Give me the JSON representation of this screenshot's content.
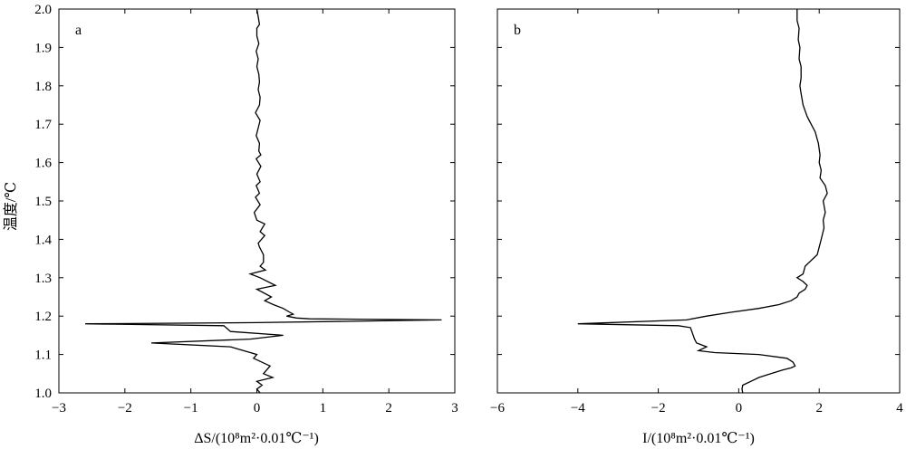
{
  "ylabel": "温度/℃",
  "chart_data": [
    {
      "type": "line",
      "panel_label": "a",
      "xlabel": "ΔS/(10⁸m²·0.01℃⁻¹)",
      "xlim": [
        -3,
        3
      ],
      "ylim": [
        1.0,
        2.0
      ],
      "xticks": [
        -3,
        -2,
        -1,
        0,
        1,
        2,
        3
      ],
      "yticks": [
        1.0,
        1.1,
        1.2,
        1.3,
        1.4,
        1.5,
        1.6,
        1.7,
        1.8,
        1.9,
        2.0
      ],
      "grid": false,
      "color": "#000000",
      "series": [
        {
          "points": [
            [
              0.0,
              2.0
            ],
            [
              0.02,
              1.98
            ],
            [
              0.04,
              1.96
            ],
            [
              0.0,
              1.95
            ],
            [
              0.0,
              1.93
            ],
            [
              0.03,
              1.91
            ],
            [
              -0.01,
              1.89
            ],
            [
              0.02,
              1.87
            ],
            [
              0.0,
              1.85
            ],
            [
              0.03,
              1.83
            ],
            [
              0.04,
              1.81
            ],
            [
              0.02,
              1.79
            ],
            [
              0.05,
              1.77
            ],
            [
              0.04,
              1.75
            ],
            [
              -0.02,
              1.73
            ],
            [
              0.05,
              1.71
            ],
            [
              0.02,
              1.69
            ],
            [
              -0.01,
              1.67
            ],
            [
              0.04,
              1.65
            ],
            [
              0.03,
              1.63
            ],
            [
              0.06,
              1.62
            ],
            [
              -0.01,
              1.61
            ],
            [
              0.06,
              1.59
            ],
            [
              0.0,
              1.57
            ],
            [
              0.05,
              1.55
            ],
            [
              -0.01,
              1.54
            ],
            [
              0.04,
              1.52
            ],
            [
              -0.02,
              1.51
            ],
            [
              0.05,
              1.49
            ],
            [
              -0.04,
              1.47
            ],
            [
              0.0,
              1.45
            ],
            [
              0.12,
              1.44
            ],
            [
              0.05,
              1.42
            ],
            [
              0.12,
              1.41
            ],
            [
              0.02,
              1.39
            ],
            [
              0.04,
              1.38
            ],
            [
              0.1,
              1.36
            ],
            [
              0.1,
              1.34
            ],
            [
              0.05,
              1.33
            ],
            [
              0.13,
              1.32
            ],
            [
              -0.1,
              1.31
            ],
            [
              0.05,
              1.3
            ],
            [
              0.28,
              1.28
            ],
            [
              0.0,
              1.27
            ],
            [
              0.22,
              1.25
            ],
            [
              0.12,
              1.24
            ],
            [
              0.25,
              1.23
            ],
            [
              0.4,
              1.22
            ],
            [
              0.5,
              1.21
            ],
            [
              0.55,
              1.205
            ],
            [
              0.45,
              1.2
            ],
            [
              0.6,
              1.195
            ],
            [
              0.8,
              1.193
            ],
            [
              2.8,
              1.19
            ],
            [
              0.0,
              1.183
            ],
            [
              -2.6,
              1.18
            ],
            [
              -0.5,
              1.175
            ],
            [
              -0.4,
              1.16
            ],
            [
              0.4,
              1.15
            ],
            [
              -0.1,
              1.14
            ],
            [
              -1.6,
              1.13
            ],
            [
              -0.4,
              1.12
            ],
            [
              0.0,
              1.1
            ],
            [
              -0.05,
              1.09
            ],
            [
              0.2,
              1.07
            ],
            [
              0.1,
              1.05
            ],
            [
              0.24,
              1.04
            ],
            [
              0.0,
              1.03
            ],
            [
              0.08,
              1.02
            ],
            [
              0.0,
              1.01
            ],
            [
              0.05,
              1.0
            ]
          ]
        }
      ]
    },
    {
      "type": "line",
      "panel_label": "b",
      "xlabel": "I/(10⁸m²·0.01℃⁻¹)",
      "xlim": [
        -6,
        4
      ],
      "ylim": [
        1.0,
        2.0
      ],
      "xticks": [
        -6,
        -4,
        -2,
        0,
        2,
        4
      ],
      "yticks": [
        1.0,
        1.1,
        1.2,
        1.3,
        1.4,
        1.5,
        1.6,
        1.7,
        1.8,
        1.9,
        2.0
      ],
      "grid": false,
      "color": "#000000",
      "series": [
        {
          "points": [
            [
              1.45,
              2.0
            ],
            [
              1.45,
              1.97
            ],
            [
              1.5,
              1.95
            ],
            [
              1.48,
              1.92
            ],
            [
              1.52,
              1.9
            ],
            [
              1.5,
              1.87
            ],
            [
              1.55,
              1.85
            ],
            [
              1.55,
              1.82
            ],
            [
              1.52,
              1.8
            ],
            [
              1.55,
              1.78
            ],
            [
              1.6,
              1.75
            ],
            [
              1.7,
              1.72
            ],
            [
              1.8,
              1.7
            ],
            [
              1.9,
              1.68
            ],
            [
              1.98,
              1.65
            ],
            [
              2.02,
              1.62
            ],
            [
              2.0,
              1.6
            ],
            [
              2.05,
              1.58
            ],
            [
              2.02,
              1.56
            ],
            [
              2.15,
              1.54
            ],
            [
              2.2,
              1.52
            ],
            [
              2.1,
              1.5
            ],
            [
              2.15,
              1.47
            ],
            [
              2.1,
              1.45
            ],
            [
              2.12,
              1.43
            ],
            [
              2.05,
              1.4
            ],
            [
              2.0,
              1.38
            ],
            [
              1.95,
              1.36
            ],
            [
              1.85,
              1.35
            ],
            [
              1.75,
              1.34
            ],
            [
              1.65,
              1.33
            ],
            [
              1.6,
              1.31
            ],
            [
              1.45,
              1.3
            ],
            [
              1.6,
              1.29
            ],
            [
              1.7,
              1.28
            ],
            [
              1.65,
              1.27
            ],
            [
              1.5,
              1.26
            ],
            [
              1.45,
              1.25
            ],
            [
              1.3,
              1.24
            ],
            [
              1.0,
              1.23
            ],
            [
              0.5,
              1.22
            ],
            [
              -0.2,
              1.21
            ],
            [
              -0.8,
              1.2
            ],
            [
              -1.3,
              1.19
            ],
            [
              -4.0,
              1.18
            ],
            [
              -1.5,
              1.175
            ],
            [
              -1.2,
              1.17
            ],
            [
              -1.1,
              1.14
            ],
            [
              -1.05,
              1.13
            ],
            [
              -0.8,
              1.12
            ],
            [
              -1.0,
              1.11
            ],
            [
              -0.6,
              1.105
            ],
            [
              0.5,
              1.1
            ],
            [
              1.2,
              1.09
            ],
            [
              1.35,
              1.08
            ],
            [
              1.4,
              1.07
            ],
            [
              1.3,
              1.065
            ],
            [
              1.1,
              1.06
            ],
            [
              0.8,
              1.05
            ],
            [
              0.5,
              1.04
            ],
            [
              0.3,
              1.03
            ],
            [
              0.1,
              1.02
            ],
            [
              0.08,
              1.01
            ],
            [
              0.1,
              1.0
            ]
          ]
        }
      ]
    }
  ]
}
